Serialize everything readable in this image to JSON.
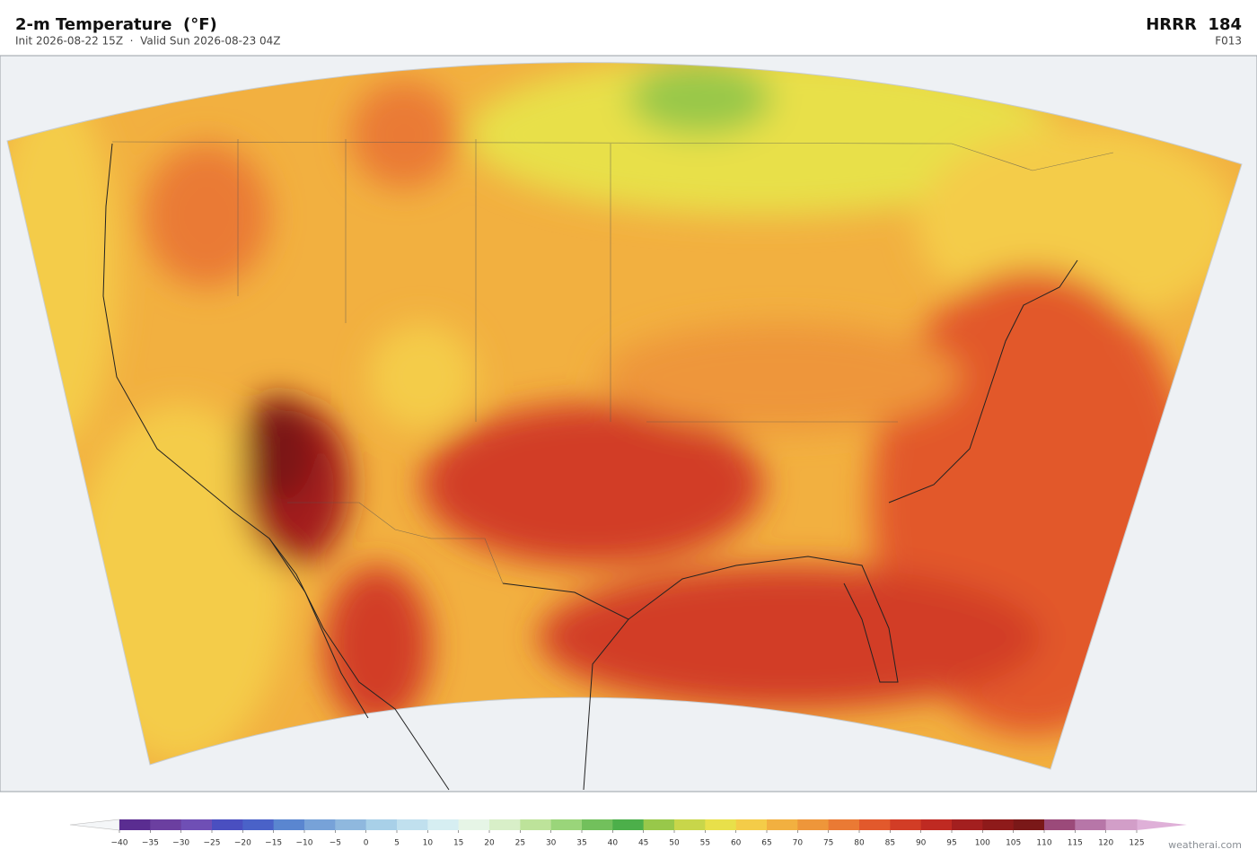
{
  "header": {
    "title": "2-m Temperature  (°F)",
    "subtitle": "Init 2026-08-22 15Z  ·  Valid Sun 2026-08-23 04Z",
    "model": "HRRR  184",
    "forecast_hour": "F013"
  },
  "colorbar": {
    "ticks": [
      {
        "value": -40,
        "label": "−40"
      },
      {
        "value": -35,
        "label": "−35"
      },
      {
        "value": -30,
        "label": "−30"
      },
      {
        "value": -25,
        "label": "−25"
      },
      {
        "value": -20,
        "label": "−20"
      },
      {
        "value": -15,
        "label": "−15"
      },
      {
        "value": -10,
        "label": "−10"
      },
      {
        "value": -5,
        "label": "−5"
      },
      0,
      5,
      10,
      15,
      20,
      25,
      30,
      35,
      40,
      45,
      50,
      55,
      60,
      65,
      70,
      75,
      80,
      85,
      90,
      95,
      100,
      105,
      110,
      115,
      120,
      125
    ],
    "colors": [
      "#5a2d91",
      "#6b3fa0",
      "#6f4fb5",
      "#4a4fc0",
      "#4a62c8",
      "#5a86d0",
      "#77a2d8",
      "#8fb8de",
      "#a8d0e8",
      "#c0e0ee",
      "#d6eef2",
      "#e6f5e6",
      "#d8efc8",
      "#bde39a",
      "#9ad57a",
      "#72c05c",
      "#4caf4a",
      "#98c84a",
      "#c8d64a",
      "#e8e04a",
      "#f4cc48",
      "#f2b040",
      "#ee963a",
      "#ea7a34",
      "#e2592c",
      "#d23d26",
      "#bf2a22",
      "#a31f1f",
      "#8e1a1a",
      "#7a1818",
      "#9b4a7a",
      "#b776a8",
      "#d29ec8"
    ],
    "under_color": "#f4f6f8",
    "over_color": "#dfb0d8"
  },
  "footer": {
    "credit": "weatherai.com"
  }
}
